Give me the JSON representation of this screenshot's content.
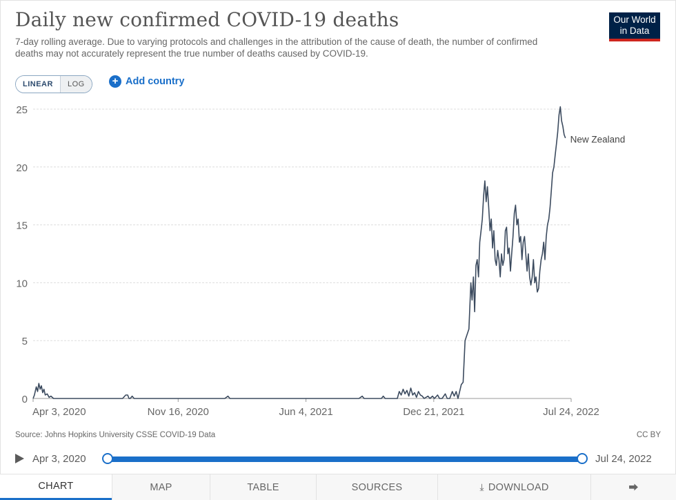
{
  "header": {
    "title": "Daily new confirmed COVID-19 deaths",
    "subtitle": "7-day rolling average. Due to varying protocols and challenges in the attribution of the cause of death, the number of confirmed deaths may not accurately represent the true number of deaths caused by COVID-19.",
    "logo_line1": "Our World",
    "logo_line2": "in Data"
  },
  "controls": {
    "linear_label": "LINEAR",
    "log_label": "LOG",
    "add_country_label": "Add country",
    "plus_icon": "plus-circle-icon"
  },
  "chart_data": {
    "type": "line",
    "title": "Daily new confirmed COVID-19 deaths",
    "xlabel": "",
    "ylabel": "",
    "ylim": [
      0,
      25
    ],
    "yticks": [
      0,
      5,
      10,
      15,
      20,
      25
    ],
    "xticks": [
      "Apr 3, 2020",
      "Nov 16, 2020",
      "Jun 4, 2021",
      "Dec 21, 2021",
      "Jul 24, 2022"
    ],
    "x_range_days": [
      0,
      842
    ],
    "xtick_days": [
      0,
      227,
      427,
      627,
      842
    ],
    "gridlines": true,
    "line_color": "#3b4a5e",
    "series": [
      {
        "name": "New Zealand",
        "points": [
          [
            0,
            0
          ],
          [
            2,
            0.3
          ],
          [
            5,
            1.0
          ],
          [
            7,
            0.6
          ],
          [
            9,
            1.3
          ],
          [
            11,
            0.8
          ],
          [
            13,
            1.1
          ],
          [
            15,
            0.5
          ],
          [
            17,
            0.8
          ],
          [
            19,
            0.3
          ],
          [
            22,
            0.4
          ],
          [
            25,
            0.1
          ],
          [
            28,
            0.2
          ],
          [
            32,
            0
          ],
          [
            40,
            0
          ],
          [
            60,
            0
          ],
          [
            80,
            0
          ],
          [
            100,
            0
          ],
          [
            120,
            0
          ],
          [
            140,
            0
          ],
          [
            145,
            0.3
          ],
          [
            148,
            0.3
          ],
          [
            150,
            0
          ],
          [
            152,
            0
          ],
          [
            155,
            0.2
          ],
          [
            158,
            0
          ],
          [
            180,
            0
          ],
          [
            200,
            0
          ],
          [
            250,
            0
          ],
          [
            300,
            0
          ],
          [
            305,
            0.2
          ],
          [
            308,
            0
          ],
          [
            350,
            0
          ],
          [
            400,
            0
          ],
          [
            450,
            0
          ],
          [
            510,
            0
          ],
          [
            515,
            0.2
          ],
          [
            518,
            0
          ],
          [
            545,
            0
          ],
          [
            548,
            0.2
          ],
          [
            551,
            0
          ],
          [
            570,
            0
          ],
          [
            573,
            0.6
          ],
          [
            576,
            0.3
          ],
          [
            579,
            0.8
          ],
          [
            582,
            0.4
          ],
          [
            585,
            0.7
          ],
          [
            588,
            0.2
          ],
          [
            591,
            0.9
          ],
          [
            594,
            0.3
          ],
          [
            597,
            0.5
          ],
          [
            600,
            0.1
          ],
          [
            603,
            0.6
          ],
          [
            606,
            0.3
          ],
          [
            609,
            0.2
          ],
          [
            612,
            0
          ],
          [
            618,
            0.2
          ],
          [
            621,
            0
          ],
          [
            625,
            0.2
          ],
          [
            628,
            0
          ],
          [
            633,
            0.3
          ],
          [
            636,
            0
          ],
          [
            640,
            0
          ],
          [
            645,
            0.4
          ],
          [
            648,
            0
          ],
          [
            652,
            0
          ],
          [
            656,
            0.6
          ],
          [
            659,
            0.2
          ],
          [
            662,
            0.6
          ],
          [
            665,
            0
          ],
          [
            670,
            1.2
          ],
          [
            673,
            1.4
          ],
          [
            676,
            5.0
          ],
          [
            679,
            5.5
          ],
          [
            682,
            6.0
          ],
          [
            685,
            10.0
          ],
          [
            687,
            8.5
          ],
          [
            689,
            10.5
          ],
          [
            691,
            7.5
          ],
          [
            693,
            11.5
          ],
          [
            695,
            12.0
          ],
          [
            697,
            10.5
          ],
          [
            699,
            13.5
          ],
          [
            701,
            14.5
          ],
          [
            703,
            15.5
          ],
          [
            705,
            17.5
          ],
          [
            707,
            18.8
          ],
          [
            709,
            17.0
          ],
          [
            711,
            18.3
          ],
          [
            713,
            16.5
          ],
          [
            715,
            14.5
          ],
          [
            717,
            15.5
          ],
          [
            719,
            13.0
          ],
          [
            721,
            14.5
          ],
          [
            723,
            12.0
          ],
          [
            725,
            11.5
          ],
          [
            727,
            12.8
          ],
          [
            729,
            12.0
          ],
          [
            731,
            10.5
          ],
          [
            733,
            12.5
          ],
          [
            735,
            11.5
          ],
          [
            737,
            12.0
          ],
          [
            739,
            14.5
          ],
          [
            741,
            14.8
          ],
          [
            743,
            12.5
          ],
          [
            745,
            13.0
          ],
          [
            747,
            11.0
          ],
          [
            749,
            12.5
          ],
          [
            751,
            14.0
          ],
          [
            753,
            16.0
          ],
          [
            755,
            16.7
          ],
          [
            757,
            15.0
          ],
          [
            759,
            15.5
          ],
          [
            761,
            13.5
          ],
          [
            763,
            14.0
          ],
          [
            765,
            12.0
          ],
          [
            767,
            13.5
          ],
          [
            769,
            14.0
          ],
          [
            771,
            12.5
          ],
          [
            773,
            11.0
          ],
          [
            775,
            12.5
          ],
          [
            777,
            10.5
          ],
          [
            779,
            9.8
          ],
          [
            781,
            10.5
          ],
          [
            783,
            12.0
          ],
          [
            785,
            10.0
          ],
          [
            787,
            10.5
          ],
          [
            789,
            9.2
          ],
          [
            791,
            9.5
          ],
          [
            793,
            11.0
          ],
          [
            795,
            12.0
          ],
          [
            797,
            12.5
          ],
          [
            799,
            13.5
          ],
          [
            801,
            12.0
          ],
          [
            803,
            14.0
          ],
          [
            805,
            15.0
          ],
          [
            807,
            15.5
          ],
          [
            809,
            16.5
          ],
          [
            811,
            18.0
          ],
          [
            813,
            19.5
          ],
          [
            815,
            20.0
          ],
          [
            817,
            21.0
          ],
          [
            819,
            22.0
          ],
          [
            821,
            23.0
          ],
          [
            823,
            24.5
          ],
          [
            825,
            25.2
          ],
          [
            827,
            24.0
          ],
          [
            829,
            23.5
          ],
          [
            831,
            22.8
          ],
          [
            833,
            22.5
          ]
        ]
      }
    ]
  },
  "footer": {
    "source": "Source: Johns Hopkins University CSSE COVID-19 Data",
    "license": "CC BY"
  },
  "timeline": {
    "start_label": "Apr 3, 2020",
    "end_label": "Jul 24, 2022",
    "start_fraction": 0,
    "end_fraction": 1
  },
  "tabs": {
    "chart": "CHART",
    "map": "MAP",
    "table": "TABLE",
    "sources": "SOURCES",
    "download": "DOWNLOAD",
    "download_icon": "download-icon",
    "share_icon": "share-icon"
  },
  "colors": {
    "accent": "#1a6fc9",
    "logo_bg": "#002147",
    "logo_stripe": "#ce261e",
    "line": "#3b4a5e",
    "grid": "#dddddd"
  }
}
